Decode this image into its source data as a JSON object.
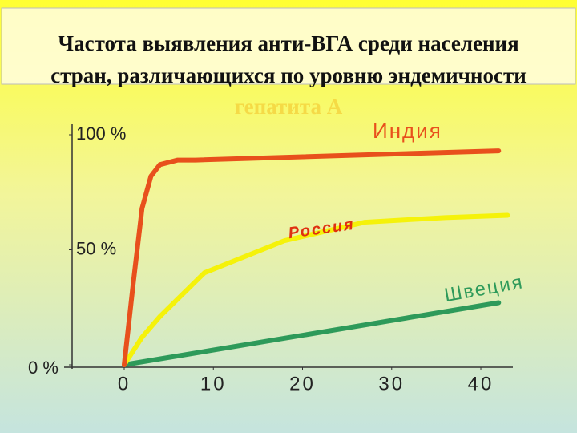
{
  "chart_data": {
    "type": "line",
    "title_lines": [
      "Частота выявления анти-ВГА среди населения",
      "стран, различающихся по уровню эндемичности",
      "гепатита А"
    ],
    "xlim": [
      -6,
      43
    ],
    "xticks": [
      0,
      10,
      20,
      30,
      40
    ],
    "ylim": [
      0,
      100
    ],
    "yticks": [
      {
        "value": 0,
        "label": "0 %"
      },
      {
        "value": 50,
        "label": "50 %"
      },
      {
        "value": 100,
        "label": "100 %"
      }
    ],
    "series": [
      {
        "name": "Индия",
        "color": "#e8501c",
        "x": [
          0,
          1,
          2,
          3,
          4,
          6,
          8,
          42
        ],
        "values": [
          0,
          35,
          68,
          82,
          87,
          89,
          89,
          93
        ]
      },
      {
        "name": "Россия",
        "color": "#f5f20a",
        "x": [
          0,
          2,
          4,
          9,
          18,
          27,
          36,
          43
        ],
        "values": [
          0,
          12,
          21,
          40,
          54,
          62,
          64,
          65
        ]
      },
      {
        "name": "Швеция",
        "color": "#2e9a5a",
        "x": [
          0,
          42
        ],
        "values": [
          0,
          27
        ]
      }
    ]
  }
}
